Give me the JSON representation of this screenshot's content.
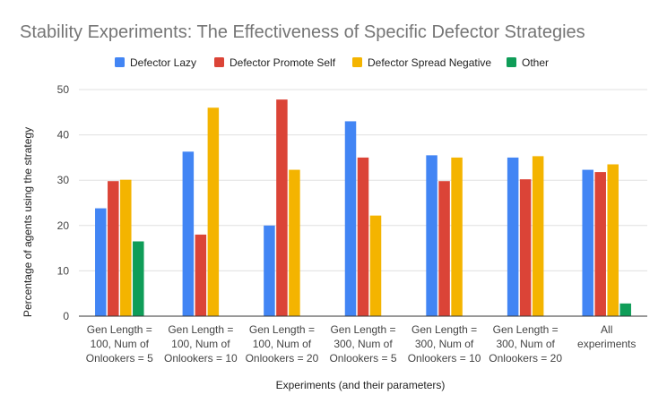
{
  "chart_data": {
    "type": "bar",
    "title": "Stability Experiments: The Effectiveness of Specific Defector Strategies",
    "xlabel": "Experiments (and their parameters)",
    "ylabel": "Percentage of agents using the strategy",
    "ylim": [
      0,
      50
    ],
    "yticks": [
      "0",
      "10",
      "20",
      "30",
      "40",
      "50"
    ],
    "grid": true,
    "legend_position": "top",
    "categories": [
      [
        "Gen Length =",
        "100, Num of",
        "Onlookers = 5"
      ],
      [
        "Gen Length =",
        "100, Num of",
        "Onlookers = 10"
      ],
      [
        "Gen Length =",
        "100, Num of",
        "Onlookers = 20"
      ],
      [
        "Gen Length =",
        "300, Num of",
        "Onlookers = 5"
      ],
      [
        "Gen Length =",
        "300, Num of",
        "Onlookers = 10"
      ],
      [
        "Gen Length =",
        "300, Num of",
        "Onlookers = 20"
      ],
      [
        "All",
        "experiments"
      ]
    ],
    "series": [
      {
        "name": "Defector Lazy",
        "color": "#4285f4",
        "values": [
          23.8,
          36.3,
          20.0,
          43.0,
          35.5,
          35.0,
          32.3
        ]
      },
      {
        "name": "Defector Promote Self",
        "color": "#db4437",
        "values": [
          29.8,
          18.0,
          47.8,
          35.0,
          29.8,
          30.2,
          31.8
        ]
      },
      {
        "name": "Defector Spread Negative",
        "color": "#f4b400",
        "values": [
          30.1,
          46.0,
          32.3,
          22.2,
          35.0,
          35.3,
          33.5
        ]
      },
      {
        "name": "Other",
        "color": "#0f9d58",
        "values": [
          16.5,
          0,
          0,
          0,
          0,
          0,
          2.8
        ]
      }
    ]
  }
}
